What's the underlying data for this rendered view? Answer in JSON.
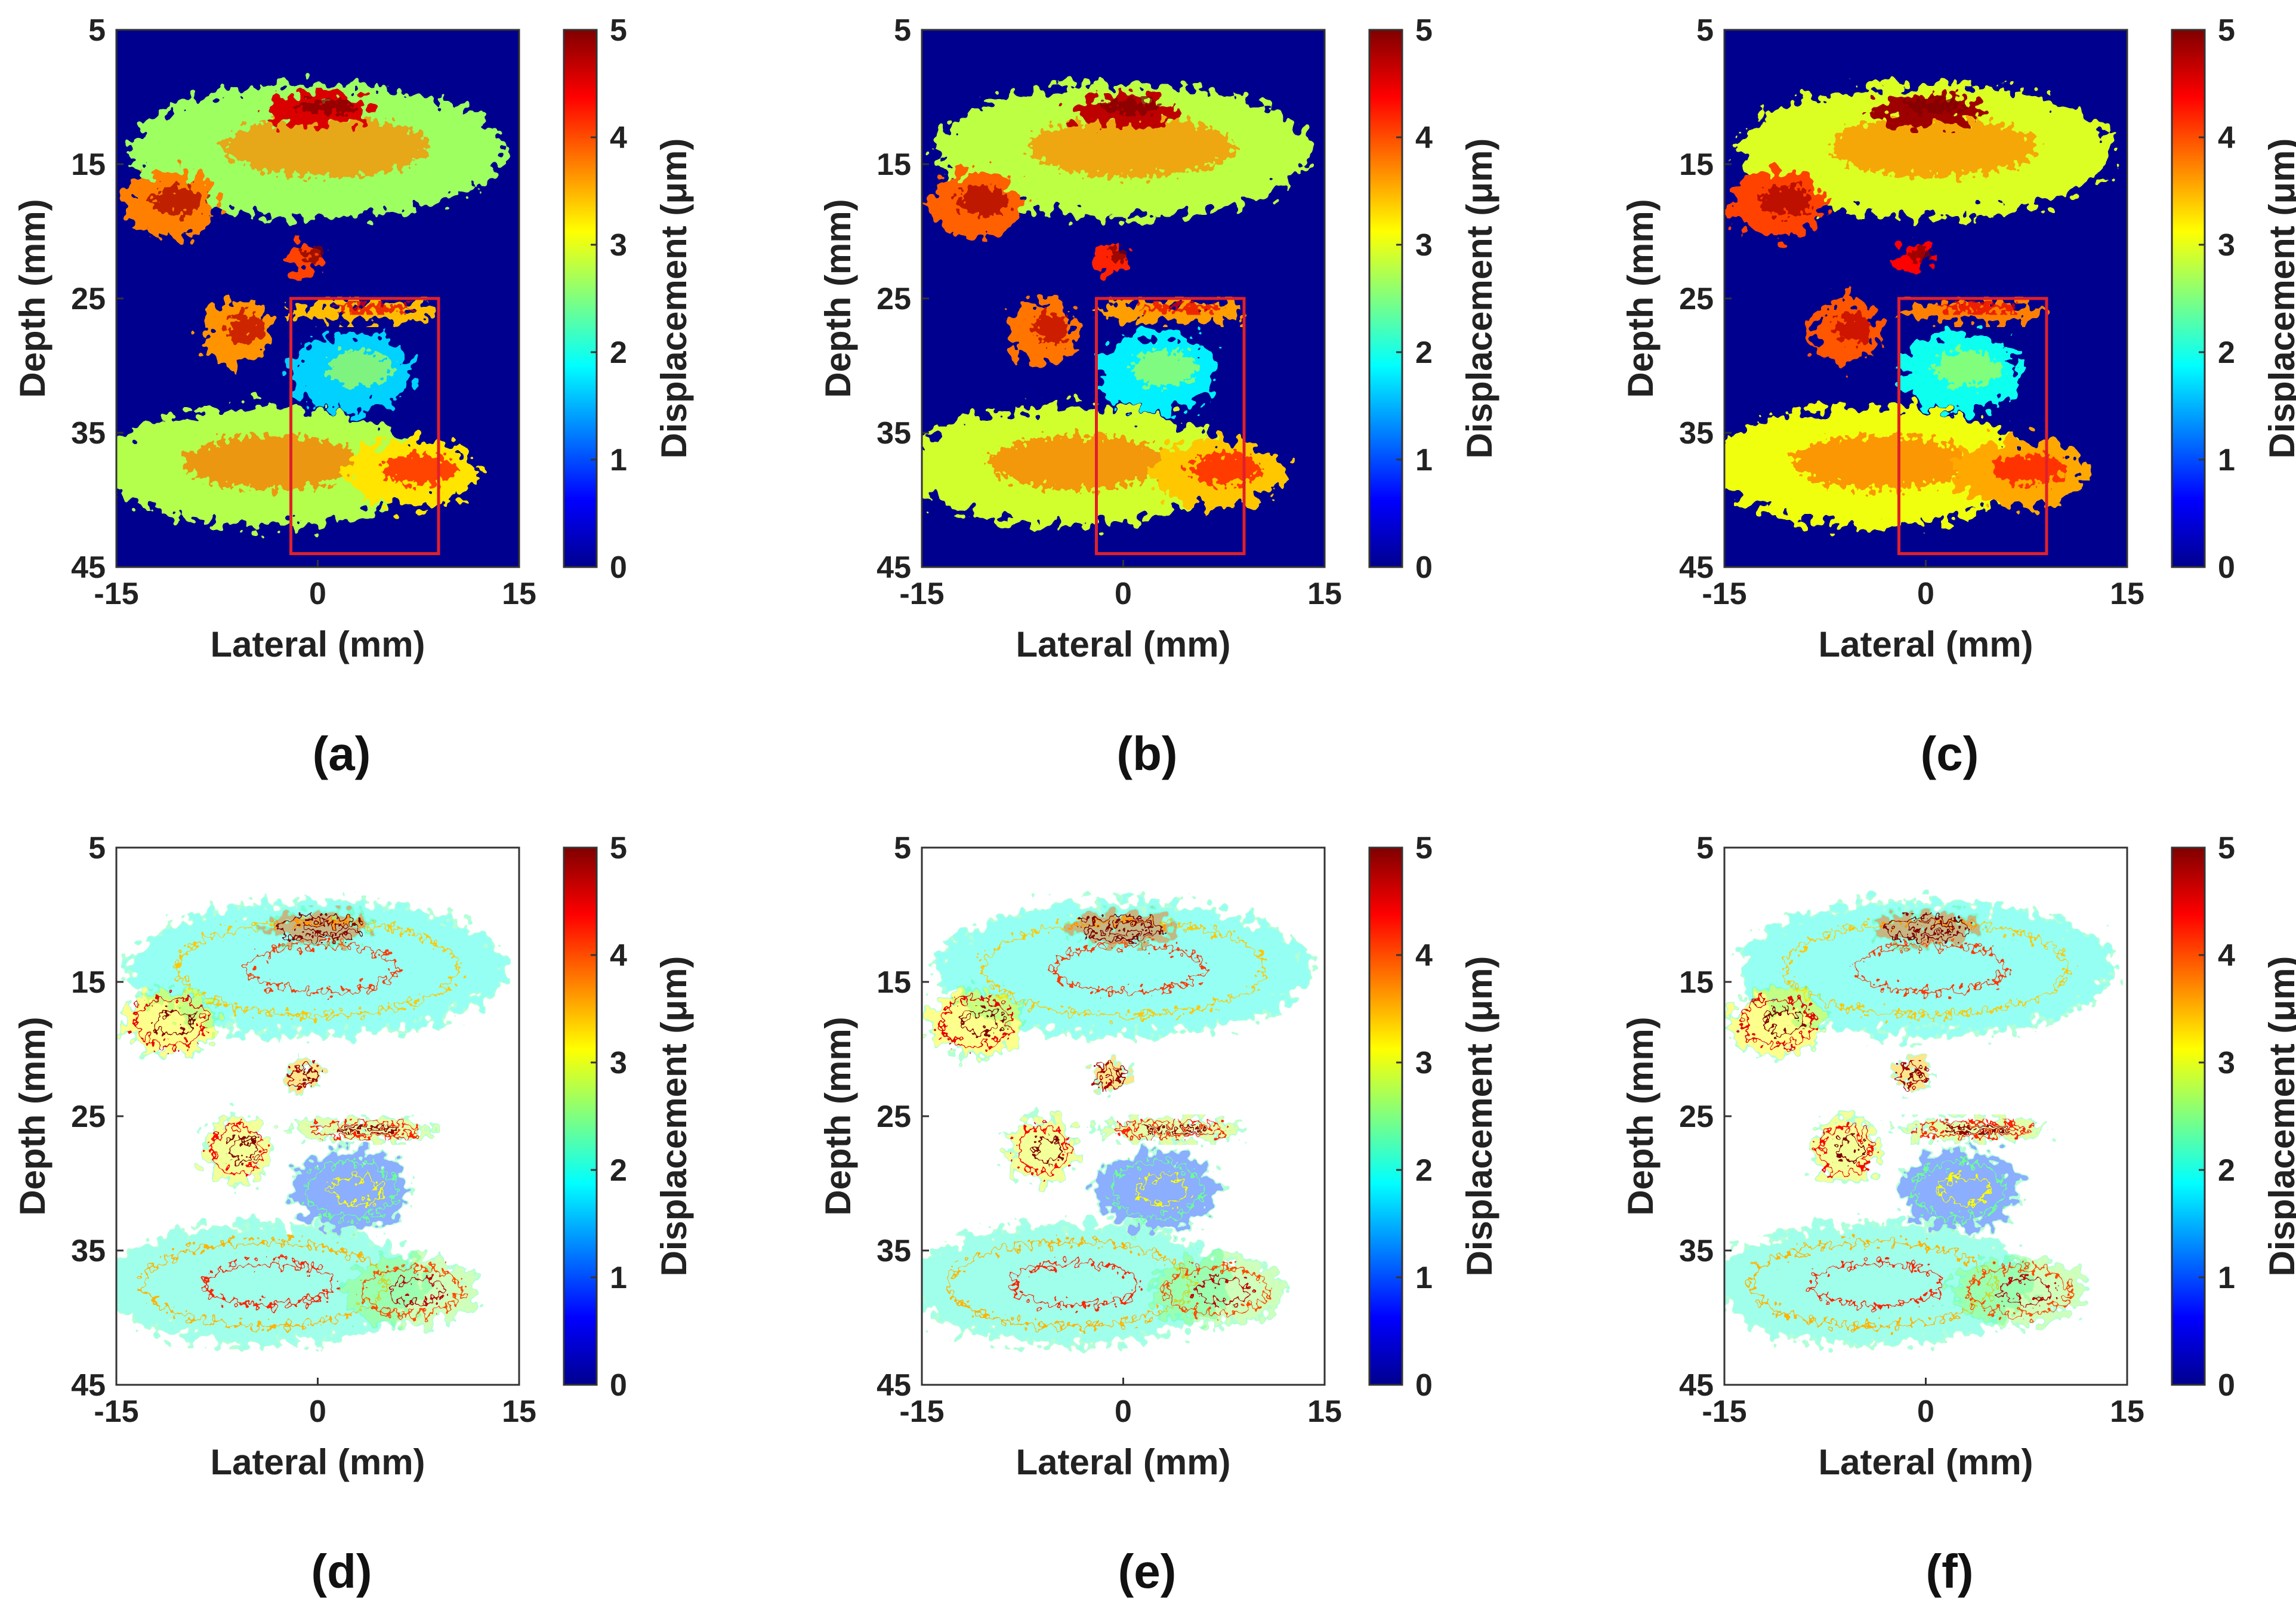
{
  "figure": {
    "description_labels": [
      "(a)",
      "(b)",
      "(c)",
      "(d)",
      "(e)",
      "(f)"
    ]
  },
  "chart_data": [
    {
      "type": "heatmap",
      "panel": "(a)",
      "style": "filled",
      "roi_box": true,
      "xlabel": "Lateral (mm)",
      "ylabel": "Depth (mm)",
      "xlim": [
        -15,
        15
      ],
      "ylim": [
        5,
        45
      ],
      "xticks": [
        "-15",
        "0",
        "15"
      ],
      "yticks": [
        "5",
        "15",
        "25",
        "35",
        "45"
      ],
      "colorbar_label": "Displacement (μm)",
      "clim": [
        0,
        5
      ],
      "colorbar_ticks": [
        "0",
        "1",
        "2",
        "3",
        "4",
        "5"
      ],
      "roi": {
        "x": [
          -2,
          9
        ],
        "y": [
          25,
          44
        ]
      }
    },
    {
      "type": "heatmap",
      "panel": "(b)",
      "style": "filled",
      "roi_box": true,
      "xlabel": "Lateral (mm)",
      "ylabel": "Depth (mm)",
      "xlim": [
        -15,
        15
      ],
      "ylim": [
        5,
        45
      ],
      "xticks": [
        "-15",
        "0",
        "15"
      ],
      "yticks": [
        "5",
        "15",
        "25",
        "35",
        "45"
      ],
      "colorbar_label": "Displacement (μm)",
      "clim": [
        0,
        5
      ],
      "colorbar_ticks": [
        "0",
        "1",
        "2",
        "3",
        "4",
        "5"
      ],
      "roi": {
        "x": [
          -2,
          9
        ],
        "y": [
          25,
          44
        ]
      }
    },
    {
      "type": "heatmap",
      "panel": "(c)",
      "style": "filled",
      "roi_box": true,
      "xlabel": "Lateral (mm)",
      "ylabel": "Depth (mm)",
      "xlim": [
        -15,
        15
      ],
      "ylim": [
        5,
        45
      ],
      "xticks": [
        "-15",
        "0",
        "15"
      ],
      "yticks": [
        "5",
        "15",
        "25",
        "35",
        "45"
      ],
      "colorbar_label": "Displacement (μm)",
      "clim": [
        0,
        5
      ],
      "colorbar_ticks": [
        "0",
        "1",
        "2",
        "3",
        "4",
        "5"
      ],
      "roi": {
        "x": [
          -2,
          9
        ],
        "y": [
          25,
          44
        ]
      }
    },
    {
      "type": "heatmap",
      "panel": "(d)",
      "style": "contour",
      "roi_box": false,
      "xlabel": "Lateral (mm)",
      "ylabel": "Depth (mm)",
      "xlim": [
        -15,
        15
      ],
      "ylim": [
        5,
        45
      ],
      "xticks": [
        "-15",
        "0",
        "15"
      ],
      "yticks": [
        "5",
        "15",
        "25",
        "35",
        "45"
      ],
      "colorbar_label": "Displacement (μm)",
      "clim": [
        0,
        5
      ],
      "colorbar_ticks": [
        "0",
        "1",
        "2",
        "3",
        "4",
        "5"
      ]
    },
    {
      "type": "heatmap",
      "panel": "(e)",
      "style": "contour",
      "roi_box": false,
      "xlabel": "Lateral (mm)",
      "ylabel": "Depth (mm)",
      "xlim": [
        -15,
        15
      ],
      "ylim": [
        5,
        45
      ],
      "xticks": [
        "-15",
        "0",
        "15"
      ],
      "yticks": [
        "5",
        "15",
        "25",
        "35",
        "45"
      ],
      "colorbar_label": "Displacement (μm)",
      "clim": [
        0,
        5
      ],
      "colorbar_ticks": [
        "0",
        "1",
        "2",
        "3",
        "4",
        "5"
      ]
    },
    {
      "type": "heatmap",
      "panel": "(f)",
      "style": "contour",
      "roi_box": false,
      "xlabel": "Lateral (mm)",
      "ylabel": "Depth (mm)",
      "xlim": [
        -15,
        15
      ],
      "ylim": [
        5,
        45
      ],
      "xticks": [
        "-15",
        "0",
        "15"
      ],
      "yticks": [
        "5",
        "15",
        "25",
        "35",
        "45"
      ],
      "colorbar_label": "Displacement (μm)",
      "clim": [
        0,
        5
      ],
      "colorbar_ticks": [
        "0",
        "1",
        "2",
        "3",
        "4",
        "5"
      ]
    }
  ],
  "colors": {
    "background": "#00008f",
    "roi": "#e0202a",
    "axis": "#333333"
  },
  "tissue_regions": [
    {
      "name": "upper-band",
      "cx": 0,
      "cy": 14,
      "rx": 14,
      "ry": 5,
      "level": 2.8
    },
    {
      "name": "upper-hot-spot",
      "cx": 0,
      "cy": 11,
      "rx": 4,
      "ry": 1.2,
      "level": 4.7
    },
    {
      "name": "left-hot-area",
      "cx": -11,
      "cy": 18,
      "rx": 3.5,
      "ry": 2.5,
      "level": 3.9
    },
    {
      "name": "small-blob",
      "cx": -1,
      "cy": 22,
      "rx": 1.3,
      "ry": 1.2,
      "level": 4.2
    },
    {
      "name": "arc",
      "cx": 3.5,
      "cy": 26,
      "rx": 5.5,
      "ry": 0.8,
      "level": 3.6
    },
    {
      "name": "inclusion",
      "cx": 2.5,
      "cy": 30.5,
      "rx": 4.5,
      "ry": 3,
      "level": 1.8
    },
    {
      "name": "left-blob",
      "cx": -6,
      "cy": 27.5,
      "rx": 2.5,
      "ry": 2.5,
      "level": 3.8
    },
    {
      "name": "lower-band",
      "cx": -4,
      "cy": 37.5,
      "rx": 12,
      "ry": 4.5,
      "level": 2.9
    },
    {
      "name": "lower-right",
      "cx": 7,
      "cy": 38,
      "rx": 5,
      "ry": 2.5,
      "level": 3.4
    }
  ]
}
